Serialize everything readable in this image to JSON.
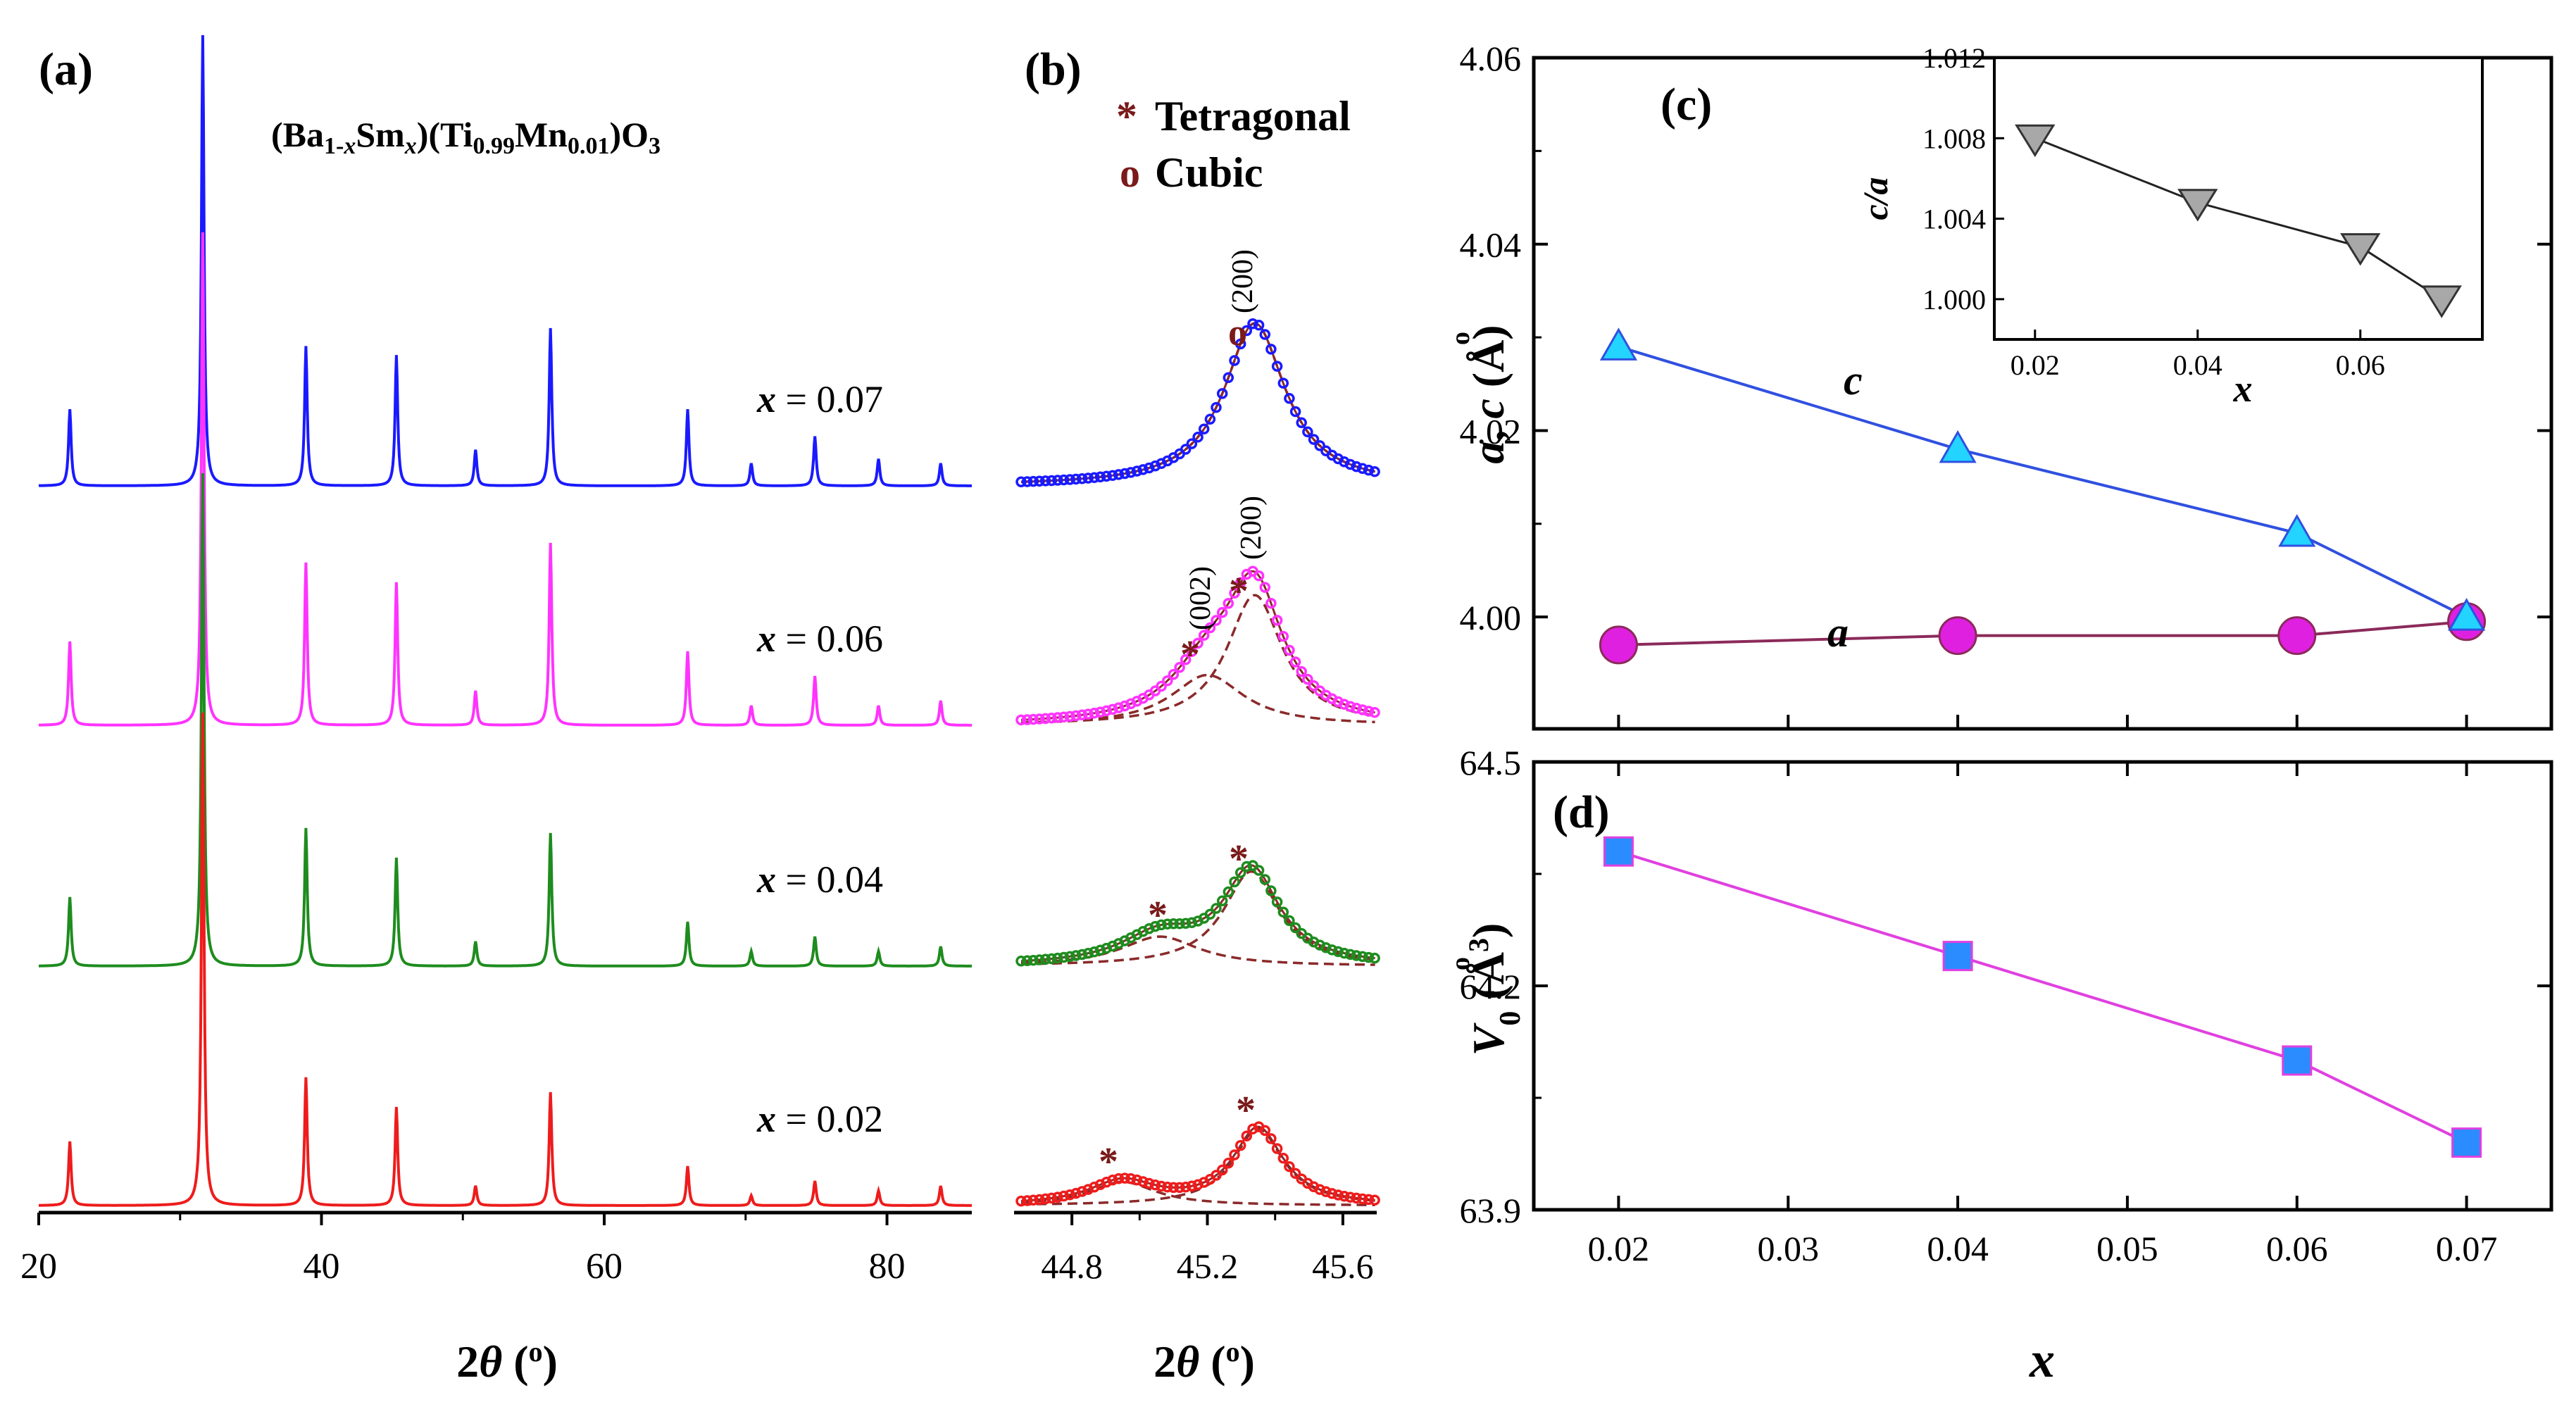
{
  "colors": {
    "blue_trace": "#1a1aff",
    "magenta_trace": "#ff33ff",
    "green_trace": "#1e8c1e",
    "red_trace": "#ee1c1c",
    "fit_dashed": "#8b2a2a",
    "marker_dark": "#7a1a1a",
    "c_line": "#3050e0",
    "c_marker": "#22d4ff",
    "a_line": "#8b2a5a",
    "a_marker": "#e020e0",
    "v_line": "#e040e0",
    "v_marker": "#2a8cff",
    "inset_marker": "#a8a8a8"
  },
  "chart_data": [
    {
      "panel": "(a)",
      "type": "line",
      "title": "",
      "formula": {
        "p1": "(Ba",
        "s1": "1-",
        "s1i": "x",
        "p2": "Sm",
        "s2i": "x",
        "p3": ")(Ti",
        "s3": "0.99",
        "p4": "Mn",
        "s4": "0.01",
        "p5": ")O",
        "s5": "3"
      },
      "xlabel": {
        "main": "2",
        "theta": "θ",
        "open": " (",
        "deg": "o",
        "close": ")"
      },
      "xlim": [
        20,
        86
      ],
      "x_ticks": [
        "20",
        "40",
        "60",
        "80"
      ],
      "peak_positions": [
        22.2,
        31.6,
        38.9,
        45.3,
        50.9,
        56.2,
        65.9,
        70.4,
        74.9,
        79.4,
        83.8
      ],
      "series": [
        {
          "name": "x = 0.07",
          "label_x": "x",
          "label_val": " = 0.07",
          "color_key": "blue_trace",
          "intensities": [
            0.17,
            1.0,
            0.31,
            0.29,
            0.08,
            0.35,
            0.17,
            0.05,
            0.11,
            0.06,
            0.05
          ]
        },
        {
          "name": "x = 0.06",
          "label_x": "x",
          "label_val": " = 0.06",
          "color_key": "magenta_trace",
          "intensities": [
            0.17,
            1.0,
            0.33,
            0.29,
            0.07,
            0.37,
            0.15,
            0.04,
            0.1,
            0.04,
            0.05
          ]
        },
        {
          "name": "x = 0.04",
          "label_x": "x",
          "label_val": " = 0.04",
          "color_key": "green_trace",
          "intensities": [
            0.14,
            1.0,
            0.28,
            0.22,
            0.05,
            0.27,
            0.09,
            0.03,
            0.06,
            0.03,
            0.04
          ]
        },
        {
          "name": "x = 0.02",
          "label_x": "x",
          "label_val": " = 0.02",
          "color_key": "red_trace",
          "intensities": [
            0.13,
            1.0,
            0.26,
            0.2,
            0.04,
            0.23,
            0.08,
            0.02,
            0.05,
            0.03,
            0.04
          ]
        }
      ]
    },
    {
      "panel": "(b)",
      "type": "scatter",
      "legend": [
        {
          "symbol": "*",
          "label": "Tetragonal"
        },
        {
          "symbol": "o",
          "label": "Cubic"
        }
      ],
      "xlabel": {
        "main": "2",
        "theta": "θ",
        "open": " (",
        "deg": "o",
        "close": ")"
      },
      "xlim": [
        44.65,
        45.7
      ],
      "x_ticks": [
        "44.8",
        "45.2",
        "45.6"
      ],
      "annotations": [
        "(200)",
        "o",
        "(002)",
        "(200)",
        "*",
        "*",
        "*",
        "*",
        "*",
        "*"
      ],
      "series": [
        {
          "name": "x = 0.07",
          "color_key": "blue_trace",
          "peaks": [
            {
              "center": 45.34,
              "height": 0.55,
              "width": 0.11
            }
          ]
        },
        {
          "name": "x = 0.06",
          "color_key": "magenta_trace",
          "peaks": [
            {
              "center": 45.2,
              "height": 0.17,
              "width": 0.13
            },
            {
              "center": 45.34,
              "height": 0.44,
              "width": 0.1
            }
          ]
        },
        {
          "name": "x = 0.04",
          "color_key": "green_trace",
          "peaks": [
            {
              "center": 45.06,
              "height": 0.1,
              "width": 0.14
            },
            {
              "center": 45.33,
              "height": 0.32,
              "width": 0.1
            }
          ]
        },
        {
          "name": "x = 0.02",
          "color_key": "red_trace",
          "peaks": [
            {
              "center": 44.95,
              "height": 0.08,
              "width": 0.12
            },
            {
              "center": 45.35,
              "height": 0.26,
              "width": 0.09
            }
          ]
        }
      ]
    },
    {
      "panel": "(c)",
      "type": "line",
      "ylabel": {
        "a": "a",
        "c": "c",
        "open": ", ",
        "paren": " (Å)",
        "ring": "o"
      },
      "xlim": [
        0.015,
        0.075
      ],
      "ylim": [
        3.988,
        4.06
      ],
      "y_ticks": [
        "4.00",
        "4.02",
        "4.04",
        "4.06"
      ],
      "series": [
        {
          "name": "c",
          "x": [
            0.02,
            0.04,
            0.06,
            0.07
          ],
          "y": [
            4.029,
            4.018,
            4.009,
            4.0
          ]
        },
        {
          "name": "a",
          "x": [
            0.02,
            0.04,
            0.06,
            0.07
          ],
          "y": [
            3.997,
            3.998,
            3.998,
            3.9995
          ]
        }
      ],
      "inset": {
        "ylabel": "c/a",
        "xlabel": "x",
        "xlim": [
          0.015,
          0.075
        ],
        "ylim": [
          0.998,
          1.012
        ],
        "x_ticks": [
          "0.02",
          "0.04",
          "0.06"
        ],
        "y_ticks": [
          "1.000",
          "1.004",
          "1.008",
          "1.012"
        ],
        "x": [
          0.02,
          0.04,
          0.06,
          0.07
        ],
        "y": [
          1.008,
          1.0048,
          1.0026,
          1.0
        ]
      }
    },
    {
      "panel": "(d)",
      "type": "line",
      "ylabel": {
        "v": "V",
        "sub": "0",
        "paren": " (Å",
        "ring": "o",
        "sup": "3",
        "close": ")"
      },
      "xlabel": "x",
      "xlim": [
        0.015,
        0.075
      ],
      "ylim": [
        63.9,
        64.5
      ],
      "x_ticks": [
        "0.02",
        "0.03",
        "0.04",
        "0.05",
        "0.06",
        "0.07"
      ],
      "y_ticks": [
        "63.9",
        "64.2",
        "64.5"
      ],
      "series": [
        {
          "name": "V0",
          "x": [
            0.02,
            0.04,
            0.06,
            0.07
          ],
          "y": [
            64.38,
            64.24,
            64.1,
            63.99
          ]
        }
      ]
    }
  ]
}
